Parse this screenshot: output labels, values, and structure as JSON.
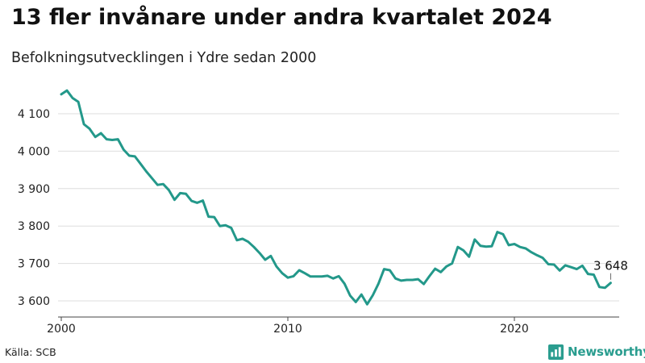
{
  "title": "13 fler invånare under andra kvartalet 2024",
  "subtitle": "Befolkningsutvecklingen i Ydre sedan 2000",
  "source": "Källa: SCB",
  "brand": {
    "name": "Newsworthy",
    "icon": "newsworthy-logo-icon",
    "color": "#2a9d8f"
  },
  "colors": {
    "line": "#23988a",
    "grid": "#dedede",
    "text": "#222222"
  },
  "chart_data": {
    "type": "line",
    "title": "13 fler invånare under andra kvartalet 2024",
    "subtitle": "Befolkningsutvecklingen i Ydre sedan 2000",
    "xlabel": "",
    "ylabel": "",
    "x_unit": "year (quarterly observations)",
    "xlim": [
      2000,
      2024.5
    ],
    "ylim": [
      3570,
      4170
    ],
    "grid": true,
    "x_ticks": [
      {
        "value": 2000,
        "label": "2000"
      },
      {
        "value": 2010,
        "label": "2010"
      },
      {
        "value": 2020,
        "label": "2020"
      }
    ],
    "y_ticks": [
      {
        "value": 3600,
        "label": "3 600"
      },
      {
        "value": 3700,
        "label": "3 700"
      },
      {
        "value": 3800,
        "label": "3 800"
      },
      {
        "value": 3900,
        "label": "3 900"
      },
      {
        "value": 4000,
        "label": "4 000"
      },
      {
        "value": 4100,
        "label": "4 100"
      }
    ],
    "end_label": {
      "value": 3648,
      "text": "3 648"
    },
    "series": [
      {
        "x_start": 2000.0,
        "x_step": 0.25,
        "values": [
          4152,
          4162,
          4142,
          4132,
          4072,
          4060,
          4038,
          4048,
          4032,
          4030,
          4032,
          4004,
          3988,
          3986,
          3966,
          3946,
          3928,
          3910,
          3912,
          3896,
          3870,
          3888,
          3886,
          3867,
          3862,
          3868,
          3825,
          3824,
          3800,
          3802,
          3795,
          3762,
          3766,
          3758,
          3744,
          3728,
          3710,
          3720,
          3692,
          3674,
          3662,
          3666,
          3682,
          3674,
          3665,
          3665,
          3665,
          3667,
          3660,
          3666,
          3646,
          3614,
          3597,
          3617,
          3591,
          3615,
          3646,
          3685,
          3682,
          3660,
          3654,
          3656,
          3656,
          3658,
          3645,
          3666,
          3686,
          3677,
          3692,
          3700,
          3744,
          3735,
          3718,
          3764,
          3747,
          3745,
          3746,
          3784,
          3778,
          3749,
          3752,
          3744,
          3740,
          3730,
          3722,
          3715,
          3698,
          3697,
          3681,
          3695,
          3690,
          3685,
          3694,
          3672,
          3670,
          3637,
          3635,
          3648
        ]
      }
    ]
  }
}
